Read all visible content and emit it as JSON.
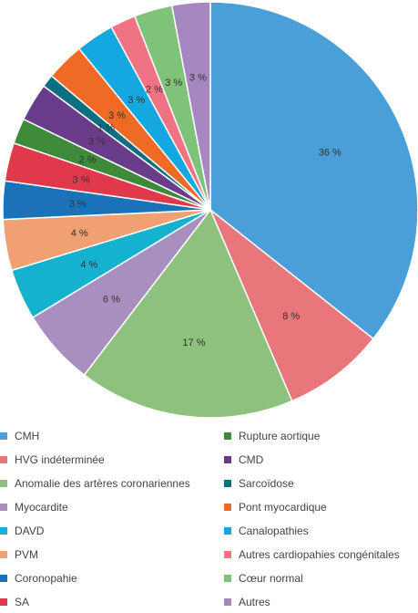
{
  "chart_data": {
    "type": "pie",
    "title": "",
    "slices": [
      {
        "name": "CMH",
        "value": 36,
        "label": "36 %",
        "color": "#4a9fd8"
      },
      {
        "name": "HVG indéterminée",
        "value": 8,
        "label": "8 %",
        "color": "#e8767a"
      },
      {
        "name": "Anomalie des artères coronariennes",
        "value": 17,
        "label": "17 %",
        "color": "#8dc17d"
      },
      {
        "name": "Myocardite",
        "value": 6,
        "label": "6 %",
        "color": "#a98fbf"
      },
      {
        "name": "DAVD",
        "value": 4,
        "label": "4 %",
        "color": "#15b2cf"
      },
      {
        "name": "PVM",
        "value": 4,
        "label": "4 %",
        "color": "#f0a072"
      },
      {
        "name": "Coronopahie",
        "value": 3,
        "label": "3 %",
        "color": "#1a73b8"
      },
      {
        "name": "SA",
        "value": 3,
        "label": "3 %",
        "color": "#e0394c"
      },
      {
        "name": "Rupture aortique",
        "value": 2,
        "label": "2 %",
        "color": "#3d8a3a"
      },
      {
        "name": "CMD",
        "value": 3,
        "label": "3 %",
        "color": "#6a3d8a"
      },
      {
        "name": "Sarcoïdose",
        "value": 1,
        "label": "1 %",
        "color": "#0e6f82"
      },
      {
        "name": "Pont myocardique",
        "value": 3,
        "label": "3 %",
        "color": "#ef6a24"
      },
      {
        "name": "Canalopathies",
        "value": 3,
        "label": "3 %",
        "color": "#15a8e0"
      },
      {
        "name": "Autres cardiopahies congénitales",
        "value": 2,
        "label": "2 %",
        "color": "#ef7382"
      },
      {
        "name": "Cœur normal",
        "value": 3,
        "label": "3 %",
        "color": "#7fc37a"
      },
      {
        "name": "Autres",
        "value": 3,
        "label": "3 %",
        "color": "#a687c0"
      }
    ],
    "legend_position": "bottom",
    "legend": {
      "left": [
        "CMH",
        "HVG indéterminée",
        "Anomalie des artères coronariennes",
        "Myocardite",
        "DAVD",
        "PVM",
        "Coronopahie",
        "SA"
      ],
      "right": [
        "Rupture aortique",
        "CMD",
        "Sarcoïdose",
        "Pont myocardique",
        "Canalopathies",
        "Autres cardiopahies congénitales",
        "Cœur normal",
        "Autres"
      ]
    }
  }
}
